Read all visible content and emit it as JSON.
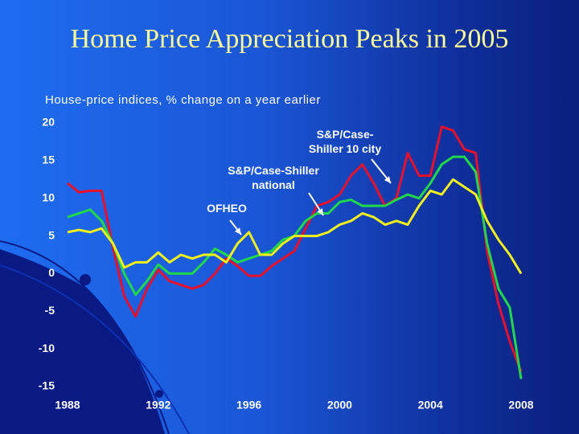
{
  "chart_data": {
    "type": "line",
    "title": "Home Price Appreciation Peaks in 2005",
    "subtitle": "House-price indices, % change on a year earlier",
    "x": [
      1988,
      1988.5,
      1989,
      1989.5,
      1990,
      1990.5,
      1991,
      1991.5,
      1992,
      1992.5,
      1993,
      1993.5,
      1994,
      1994.5,
      1995,
      1995.5,
      1996,
      1996.5,
      1997,
      1997.5,
      1998,
      1998.5,
      1999,
      1999.5,
      2000,
      2000.5,
      2001,
      2001.5,
      2002,
      2002.5,
      2003,
      2003.5,
      2004,
      2004.5,
      2005,
      2005.5,
      2006,
      2006.5,
      2007,
      2007.5,
      2008
    ],
    "series": [
      {
        "name": "S&P/Case-Shiller 10 city",
        "color": "#e8102a",
        "values": [
          12,
          10.8,
          11,
          11,
          3.5,
          -3,
          -5.7,
          -2,
          0.5,
          -1,
          -1.5,
          -2,
          -1.5,
          0,
          2,
          1,
          -0.3,
          -0.3,
          1,
          2,
          3,
          6,
          9,
          9.5,
          10.5,
          13,
          14.5,
          12,
          9,
          10,
          16,
          13,
          13,
          19.5,
          19,
          16.5,
          16,
          3,
          -4,
          -9,
          -13
        ]
      },
      {
        "name": "S&P/Case-Shiller national",
        "color": "#22d84a",
        "values": [
          7.5,
          8,
          8.5,
          7,
          4,
          0,
          -2.8,
          -1,
          1.2,
          0,
          0,
          0,
          1.5,
          3.3,
          2.5,
          1.5,
          2,
          2.5,
          3,
          4.5,
          5,
          7,
          8,
          8,
          9.5,
          9.8,
          9,
          9,
          9,
          9.8,
          10.5,
          10,
          12,
          14.5,
          15.5,
          15.5,
          13.5,
          4,
          -2,
          -4.5,
          -14
        ]
      },
      {
        "name": "OFHEO",
        "color": "#f2f21a",
        "values": [
          5.5,
          5.8,
          5.5,
          6,
          4,
          0.8,
          1.5,
          1.5,
          2.8,
          1.5,
          2.5,
          2,
          2.5,
          2.5,
          1.5,
          4,
          5.5,
          2.5,
          2.5,
          4,
          5,
          5,
          5,
          5.5,
          6.5,
          7,
          8,
          7.5,
          6.5,
          7,
          6.5,
          9,
          11,
          10.5,
          12.5,
          11.5,
          10.5,
          7,
          4.5,
          2.5,
          0
        ]
      }
    ],
    "xlim": [
      1988,
      2008
    ],
    "xticks": [
      1988,
      1992,
      1996,
      2000,
      2004,
      2008
    ],
    "ylim": [
      -15,
      20
    ],
    "yticks": [
      -15,
      -10,
      -5,
      0,
      5,
      10,
      15,
      20
    ]
  }
}
